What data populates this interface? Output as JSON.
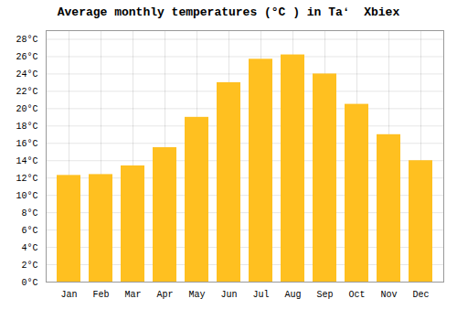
{
  "chart_data": {
    "type": "bar",
    "title": "Average monthly temperatures (°C ) in Taʻ  Xbiex",
    "categories": [
      "Jan",
      "Feb",
      "Mar",
      "Apr",
      "May",
      "Jun",
      "Jul",
      "Aug",
      "Sep",
      "Oct",
      "Nov",
      "Dec"
    ],
    "values": [
      12.3,
      12.4,
      13.4,
      15.5,
      19.0,
      23.0,
      25.7,
      26.2,
      24.0,
      20.5,
      17.0,
      14.0
    ],
    "color": "#FFC020",
    "ylim": [
      0,
      29
    ],
    "yticks": [
      {
        "value": 0,
        "label": "0°C"
      },
      {
        "value": 2,
        "label": "2°C"
      },
      {
        "value": 4,
        "label": "4°C"
      },
      {
        "value": 6,
        "label": "6°C"
      },
      {
        "value": 8,
        "label": "8°C"
      },
      {
        "value": 10,
        "label": "10°C"
      },
      {
        "value": 12,
        "label": "12°C"
      },
      {
        "value": 14,
        "label": "14°C"
      },
      {
        "value": 16,
        "label": "16°C"
      },
      {
        "value": 18,
        "label": "18°C"
      },
      {
        "value": 20,
        "label": "20°C"
      },
      {
        "value": 22,
        "label": "22°C"
      },
      {
        "value": 24,
        "label": "24°C"
      },
      {
        "value": 26,
        "label": "26°C"
      },
      {
        "value": 28,
        "label": "28°C"
      }
    ],
    "grid": true
  }
}
